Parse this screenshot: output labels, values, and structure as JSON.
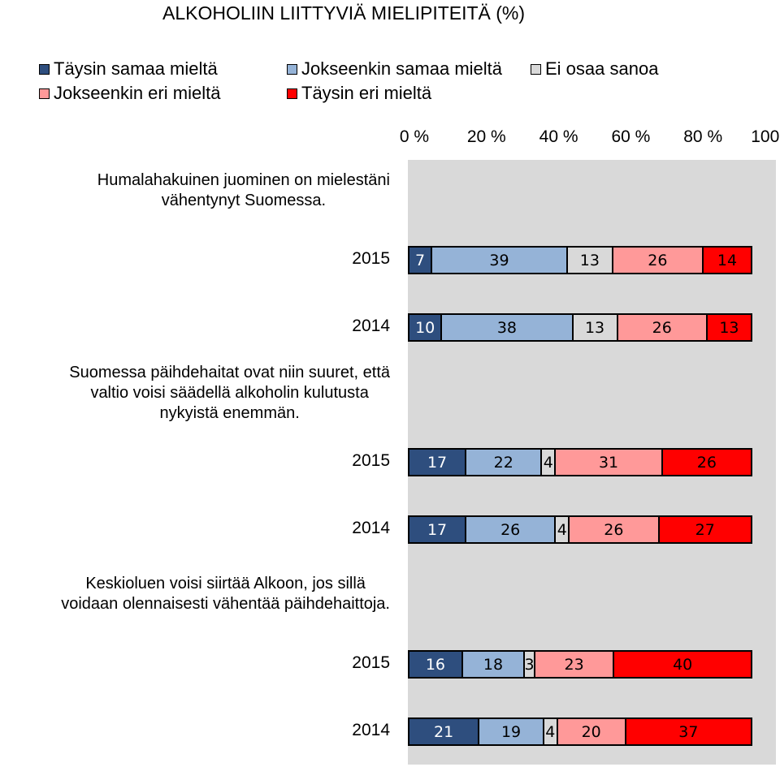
{
  "chart_data": {
    "type": "bar",
    "orientation": "horizontal",
    "stacked": "percent",
    "title": "ALKOHOLIIN LIITTYVIÄ MIELIPITEITÄ (%)",
    "x_ticks": [
      "0 %",
      "20 %",
      "40 %",
      "60 %",
      "80 %",
      "100 %"
    ],
    "xlim": [
      0,
      100
    ],
    "legend_position": "top",
    "series": [
      {
        "name": "Täysin samaa mieltä",
        "color": "#2e4e7e",
        "label_color": "#ffffff"
      },
      {
        "name": "Jokseenkin samaa mieltä",
        "color": "#95b3d7",
        "label_color": "#000000"
      },
      {
        "name": "Ei osaa sanoa",
        "color": "#d9d9d9",
        "label_color": "#000000"
      },
      {
        "name": "Jokseenkin eri mieltä",
        "color": "#ff9999",
        "label_color": "#000000"
      },
      {
        "name": "Täysin eri mieltä",
        "color": "#ff0000",
        "label_color": "#000000"
      }
    ],
    "groups": [
      {
        "question": "Humalahakuinen juominen on mielestäni\nvähentynyt Suomessa.",
        "rows": [
          {
            "year": "2015",
            "values": [
              7,
              39,
              13,
              26,
              14
            ]
          },
          {
            "year": "2014",
            "values": [
              10,
              38,
              13,
              26,
              13
            ]
          }
        ]
      },
      {
        "question": "Suomessa päihdehaitat ovat niin suuret, että\nvaltio voisi säädellä alkoholin kulutusta\nnykyistä enemmän.",
        "rows": [
          {
            "year": "2015",
            "values": [
              17,
              22,
              4,
              31,
              26
            ]
          },
          {
            "year": "2014",
            "values": [
              17,
              26,
              4,
              26,
              27
            ]
          }
        ]
      },
      {
        "question": "Keskioluen voisi siirtää Alkoon, jos sillä\nvoidaan olennaisesti vähentää päihdehaittoja.",
        "rows": [
          {
            "year": "2015",
            "values": [
              16,
              18,
              3,
              23,
              40
            ]
          },
          {
            "year": "2014",
            "values": [
              21,
              19,
              4,
              20,
              37
            ]
          }
        ]
      }
    ]
  }
}
